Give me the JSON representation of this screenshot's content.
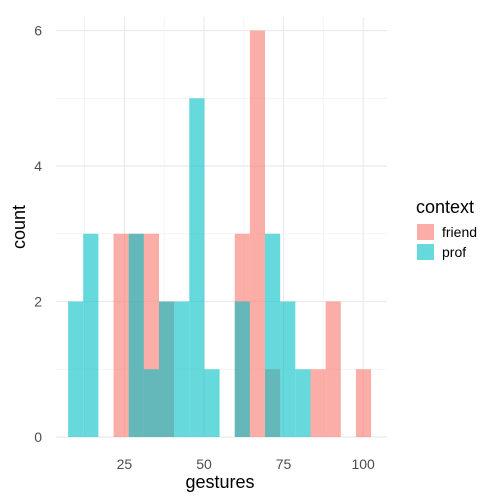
{
  "chart_data": {
    "type": "bar",
    "subtype": "histogram",
    "title": "",
    "xlabel": "gestures",
    "ylabel": "count",
    "xlim": [
      3.5,
      107.5
    ],
    "ylim": [
      0,
      6.2
    ],
    "grid": true,
    "x_ticks": [
      25,
      50,
      75,
      100
    ],
    "y_ticks": [
      0,
      2,
      4,
      6
    ],
    "bin_width": 4.76,
    "bin_starts": [
      7.3,
      12.06,
      16.82,
      21.58,
      26.34,
      31.1,
      35.86,
      40.62,
      45.38,
      50.14,
      54.9,
      59.66,
      64.42,
      69.18,
      73.94,
      78.7,
      83.46,
      88.22,
      92.98,
      97.74
    ],
    "legend_title": "context",
    "legend_position": "right",
    "series": [
      {
        "name": "friend",
        "color": "#F8766D",
        "values": [
          0,
          0,
          0,
          3,
          3,
          3,
          2,
          0,
          0,
          0,
          0,
          3,
          6,
          1,
          0,
          0,
          1,
          2,
          0,
          1
        ]
      },
      {
        "name": "prof",
        "color": "#00BFC4",
        "values": [
          2,
          3,
          0,
          0,
          3,
          1,
          2,
          2,
          5,
          1,
          0,
          2,
          0,
          3,
          2,
          1,
          0,
          0,
          0,
          0
        ]
      }
    ]
  }
}
